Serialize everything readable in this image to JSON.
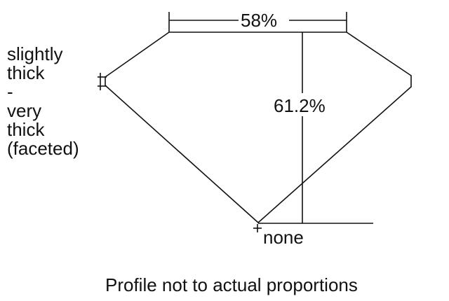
{
  "diagram": {
    "table_percent": "58%",
    "depth_percent": "61.2%",
    "culet": "none",
    "girdle_lines": [
      "slightly",
      "thick",
      "-",
      "very",
      "thick",
      "(faceted)"
    ],
    "footnote": "Profile not to actual proportions"
  }
}
